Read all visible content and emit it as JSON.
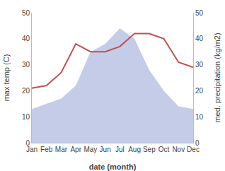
{
  "chart_data": {
    "type": "line",
    "categories": [
      "Jan",
      "Feb",
      "Mar",
      "Apr",
      "May",
      "Jun",
      "Jul",
      "Aug",
      "Sep",
      "Oct",
      "Nov",
      "Dec"
    ],
    "series": [
      {
        "type": "area",
        "axis": "y2",
        "color": "#c5cce8",
        "values": [
          13,
          15,
          17,
          22,
          35,
          38,
          44,
          40,
          28,
          20,
          14,
          13
        ]
      },
      {
        "type": "line",
        "axis": "y",
        "color": "#c0514d",
        "values": [
          21,
          22,
          27,
          38,
          35,
          35,
          37,
          42,
          42,
          40,
          31,
          29
        ]
      }
    ],
    "x_label": "date (month)",
    "y_label": "max temp (C)",
    "y2_label": "med. precipitation (kg/m2)",
    "ylim": [
      0,
      50
    ],
    "yticks": [
      0,
      10,
      20,
      30,
      40,
      50
    ],
    "y2lim": [
      0,
      50
    ],
    "y2ticks": [
      0,
      10,
      20,
      30,
      40,
      50
    ],
    "grid": false
  }
}
